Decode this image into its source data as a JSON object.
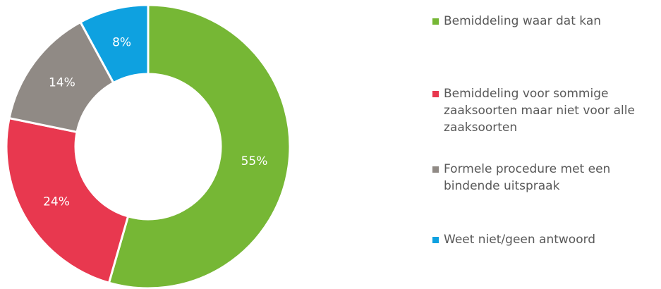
{
  "chart_data": {
    "type": "donut",
    "categories": [
      "Bemiddeling waar dat kan",
      "Bemiddeling voor sommige zaaksoorten maar niet voor alle zaaksoorten",
      "Formele procedure met een bindende uitspraak",
      "Weet niet/geen antwoord"
    ],
    "values": [
      55,
      24,
      14,
      8
    ],
    "value_labels": [
      "55%",
      "24%",
      "14%",
      "8%"
    ],
    "colors": [
      "#76b735",
      "#e8384f",
      "#908a85",
      "#0ea1e0"
    ],
    "legend": "right"
  }
}
